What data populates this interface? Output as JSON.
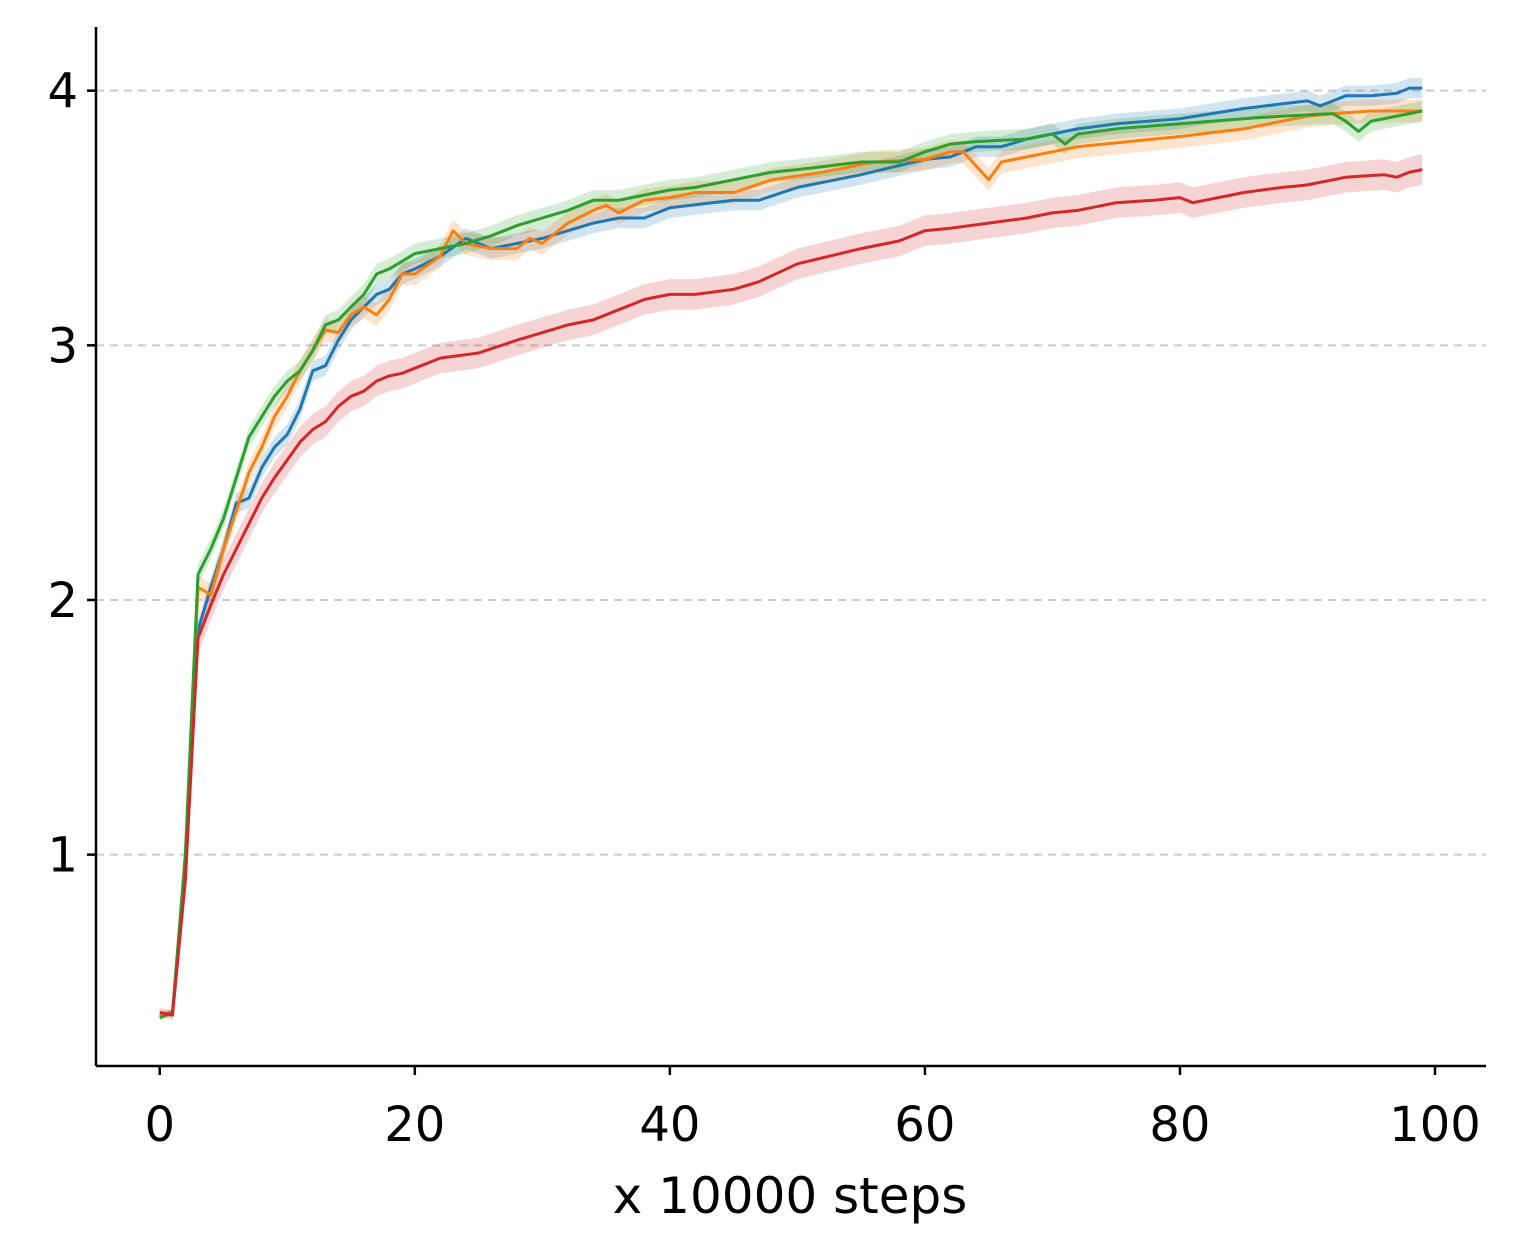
{
  "chart_data": {
    "type": "line",
    "title": "",
    "xlabel": "x 10000 steps",
    "ylabel": "",
    "xlim": [
      -5,
      104
    ],
    "ylim": [
      0.17,
      4.25
    ],
    "xticks": [
      0,
      20,
      40,
      60,
      80,
      100
    ],
    "yticks": [
      1,
      2,
      3,
      4
    ],
    "grid": "horizontal dashed",
    "legend": "none",
    "series": [
      {
        "color": "#1f77b4",
        "band": 0.04,
        "anchors": [
          [
            0,
            0.37
          ],
          [
            1,
            0.38
          ],
          [
            2,
            0.9
          ],
          [
            3,
            1.88
          ],
          [
            4,
            2.05
          ],
          [
            5,
            2.2
          ],
          [
            6,
            2.38
          ],
          [
            7,
            2.4
          ],
          [
            8,
            2.52
          ],
          [
            9,
            2.6
          ],
          [
            10,
            2.65
          ],
          [
            11,
            2.75
          ],
          [
            12,
            2.9
          ],
          [
            13,
            2.92
          ],
          [
            14,
            3.02
          ],
          [
            15,
            3.1
          ],
          [
            16,
            3.15
          ],
          [
            17,
            3.2
          ],
          [
            18,
            3.22
          ],
          [
            19,
            3.28
          ],
          [
            20,
            3.3
          ],
          [
            22,
            3.35
          ],
          [
            24,
            3.42
          ],
          [
            26,
            3.38
          ],
          [
            28,
            3.4
          ],
          [
            30,
            3.42
          ],
          [
            32,
            3.45
          ],
          [
            34,
            3.48
          ],
          [
            36,
            3.5
          ],
          [
            38,
            3.5
          ],
          [
            40,
            3.54
          ],
          [
            45,
            3.57
          ],
          [
            47,
            3.57
          ],
          [
            50,
            3.62
          ],
          [
            55,
            3.67
          ],
          [
            60,
            3.73
          ],
          [
            62,
            3.74
          ],
          [
            64,
            3.78
          ],
          [
            66,
            3.78
          ],
          [
            68,
            3.81
          ],
          [
            70,
            3.83
          ],
          [
            72,
            3.85
          ],
          [
            75,
            3.87
          ],
          [
            80,
            3.89
          ],
          [
            85,
            3.93
          ],
          [
            90,
            3.96
          ],
          [
            91,
            3.94
          ],
          [
            93,
            3.98
          ],
          [
            95,
            3.98
          ],
          [
            97,
            3.99
          ],
          [
            98,
            4.01
          ],
          [
            99,
            4.01
          ]
        ]
      },
      {
        "color": "#ff7f0e",
        "band": 0.045,
        "anchors": [
          [
            0,
            0.37
          ],
          [
            1,
            0.38
          ],
          [
            2,
            0.95
          ],
          [
            3,
            2.05
          ],
          [
            4,
            2.02
          ],
          [
            5,
            2.2
          ],
          [
            6,
            2.35
          ],
          [
            7,
            2.5
          ],
          [
            8,
            2.6
          ],
          [
            9,
            2.72
          ],
          [
            10,
            2.8
          ],
          [
            11,
            2.9
          ],
          [
            12,
            2.98
          ],
          [
            13,
            3.06
          ],
          [
            14,
            3.05
          ],
          [
            15,
            3.12
          ],
          [
            16,
            3.15
          ],
          [
            17,
            3.12
          ],
          [
            18,
            3.18
          ],
          [
            19,
            3.28
          ],
          [
            20,
            3.28
          ],
          [
            22,
            3.35
          ],
          [
            23,
            3.45
          ],
          [
            24,
            3.4
          ],
          [
            26,
            3.38
          ],
          [
            28,
            3.38
          ],
          [
            29,
            3.42
          ],
          [
            30,
            3.4
          ],
          [
            32,
            3.48
          ],
          [
            34,
            3.53
          ],
          [
            35,
            3.55
          ],
          [
            36,
            3.52
          ],
          [
            38,
            3.57
          ],
          [
            40,
            3.58
          ],
          [
            42,
            3.6
          ],
          [
            45,
            3.6
          ],
          [
            48,
            3.65
          ],
          [
            52,
            3.68
          ],
          [
            56,
            3.72
          ],
          [
            60,
            3.73
          ],
          [
            62,
            3.76
          ],
          [
            63,
            3.76
          ],
          [
            65,
            3.65
          ],
          [
            66,
            3.72
          ],
          [
            68,
            3.74
          ],
          [
            72,
            3.78
          ],
          [
            74,
            3.79
          ],
          [
            76,
            3.8
          ],
          [
            80,
            3.82
          ],
          [
            85,
            3.85
          ],
          [
            90,
            3.9
          ],
          [
            92,
            3.91
          ],
          [
            95,
            3.92
          ],
          [
            99,
            3.92
          ]
        ]
      },
      {
        "color": "#2ca02c",
        "band": 0.04,
        "anchors": [
          [
            0,
            0.36
          ],
          [
            1,
            0.38
          ],
          [
            2,
            1.0
          ],
          [
            3,
            2.1
          ],
          [
            4,
            2.2
          ],
          [
            5,
            2.32
          ],
          [
            6,
            2.48
          ],
          [
            7,
            2.64
          ],
          [
            8,
            2.72
          ],
          [
            9,
            2.8
          ],
          [
            10,
            2.86
          ],
          [
            11,
            2.9
          ],
          [
            12,
            2.98
          ],
          [
            13,
            3.08
          ],
          [
            14,
            3.1
          ],
          [
            15,
            3.15
          ],
          [
            16,
            3.2
          ],
          [
            17,
            3.28
          ],
          [
            18,
            3.3
          ],
          [
            19,
            3.33
          ],
          [
            20,
            3.36
          ],
          [
            22,
            3.38
          ],
          [
            24,
            3.4
          ],
          [
            26,
            3.43
          ],
          [
            28,
            3.47
          ],
          [
            30,
            3.5
          ],
          [
            32,
            3.53
          ],
          [
            34,
            3.57
          ],
          [
            36,
            3.57
          ],
          [
            38,
            3.59
          ],
          [
            40,
            3.61
          ],
          [
            42,
            3.62
          ],
          [
            45,
            3.65
          ],
          [
            48,
            3.68
          ],
          [
            50,
            3.69
          ],
          [
            55,
            3.72
          ],
          [
            58,
            3.72
          ],
          [
            60,
            3.76
          ],
          [
            62,
            3.79
          ],
          [
            64,
            3.8
          ],
          [
            68,
            3.81
          ],
          [
            70,
            3.83
          ],
          [
            71,
            3.79
          ],
          [
            72,
            3.83
          ],
          [
            75,
            3.85
          ],
          [
            80,
            3.87
          ],
          [
            85,
            3.89
          ],
          [
            88,
            3.9
          ],
          [
            92,
            3.91
          ],
          [
            93,
            3.88
          ],
          [
            94,
            3.84
          ],
          [
            95,
            3.88
          ],
          [
            97,
            3.9
          ],
          [
            99,
            3.92
          ]
        ]
      },
      {
        "color": "#d62728",
        "band": 0.06,
        "anchors": [
          [
            0,
            0.38
          ],
          [
            1,
            0.37
          ],
          [
            2,
            0.9
          ],
          [
            3,
            1.85
          ],
          [
            4,
            1.98
          ],
          [
            5,
            2.1
          ],
          [
            6,
            2.2
          ],
          [
            7,
            2.3
          ],
          [
            8,
            2.4
          ],
          [
            9,
            2.48
          ],
          [
            10,
            2.55
          ],
          [
            11,
            2.62
          ],
          [
            12,
            2.67
          ],
          [
            13,
            2.7
          ],
          [
            14,
            2.76
          ],
          [
            15,
            2.8
          ],
          [
            16,
            2.82
          ],
          [
            17,
            2.86
          ],
          [
            18,
            2.88
          ],
          [
            19,
            2.89
          ],
          [
            20,
            2.91
          ],
          [
            22,
            2.95
          ],
          [
            25,
            2.97
          ],
          [
            28,
            3.02
          ],
          [
            30,
            3.05
          ],
          [
            32,
            3.08
          ],
          [
            34,
            3.1
          ],
          [
            36,
            3.14
          ],
          [
            38,
            3.18
          ],
          [
            40,
            3.2
          ],
          [
            42,
            3.2
          ],
          [
            45,
            3.22
          ],
          [
            47,
            3.25
          ],
          [
            50,
            3.32
          ],
          [
            55,
            3.38
          ],
          [
            58,
            3.41
          ],
          [
            60,
            3.45
          ],
          [
            62,
            3.46
          ],
          [
            65,
            3.48
          ],
          [
            68,
            3.5
          ],
          [
            70,
            3.52
          ],
          [
            72,
            3.53
          ],
          [
            75,
            3.56
          ],
          [
            78,
            3.57
          ],
          [
            80,
            3.58
          ],
          [
            81,
            3.56
          ],
          [
            83,
            3.58
          ],
          [
            85,
            3.6
          ],
          [
            88,
            3.62
          ],
          [
            90,
            3.63
          ],
          [
            93,
            3.66
          ],
          [
            96,
            3.67
          ],
          [
            97,
            3.66
          ],
          [
            98,
            3.68
          ],
          [
            99,
            3.69
          ]
        ]
      }
    ]
  }
}
